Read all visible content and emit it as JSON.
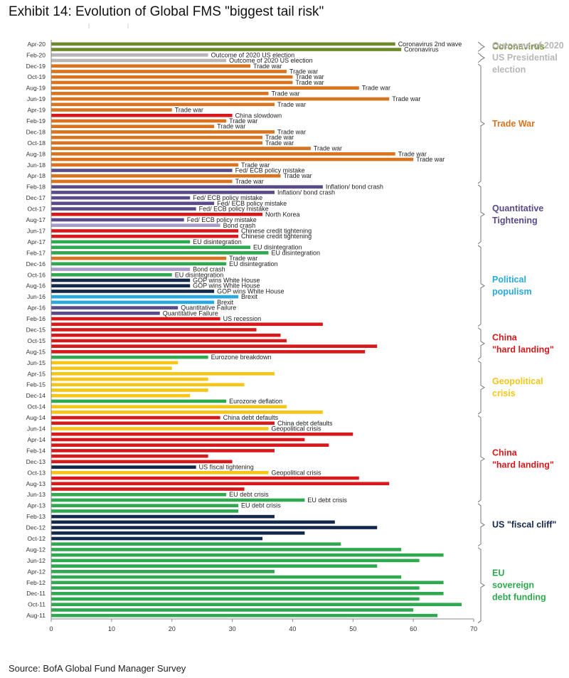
{
  "title": "Exhibit 14: Evolution of Global FMS \"biggest tail risk\"",
  "source": "Source: BofA Global Fund Manager Survey",
  "colors": {
    "green_olive": "#6e8b2c",
    "grey": "#b7b7b7",
    "orange": "#d9731d",
    "purple": "#5a4a8a",
    "lilac": "#a89cc8",
    "green": "#2fa84f",
    "red": "#d7191c",
    "navy": "#14284b",
    "blue": "#27a9e1",
    "yellow": "#f5c518"
  },
  "chart_data": {
    "type": "bar",
    "orientation": "horizontal",
    "xlim": [
      0,
      70
    ],
    "xticks": [
      "0",
      "10",
      "20",
      "30",
      "40",
      "50",
      "60",
      "70"
    ],
    "ytick_labels": [
      "Apr-20",
      "Feb-20",
      "Dec-19",
      "Oct-19",
      "Aug-19",
      "Jun-19",
      "Apr-19",
      "Feb-19",
      "Dec-18",
      "Oct-18",
      "Aug-18",
      "Jun-18",
      "Apr-18",
      "Feb-18",
      "Dec-17",
      "Oct-17",
      "Aug-17",
      "Jun-17",
      "Apr-17",
      "Feb-17",
      "Dec-16",
      "Oct-16",
      "Aug-16",
      "Jun-16",
      "Apr-16",
      "Feb-16",
      "Dec-15",
      "Oct-15",
      "Aug-15",
      "Jun-15",
      "Apr-15",
      "Feb-15",
      "Dec-14",
      "Oct-14",
      "Aug-14",
      "Jun-14",
      "Apr-14",
      "Feb-14",
      "Dec-13",
      "Oct-13",
      "Aug-13",
      "Jun-13",
      "Apr-13",
      "Feb-13",
      "Dec-12",
      "Oct-12",
      "Aug-12",
      "Jun-12",
      "Apr-12",
      "Feb-12",
      "Dec-11",
      "Oct-11",
      "Aug-11"
    ],
    "bars": [
      {
        "value": 57,
        "color": "green_olive",
        "label": "Coronavirus 2nd wave"
      },
      {
        "value": 58,
        "color": "green_olive",
        "label": "Coronavirus"
      },
      {
        "value": 26,
        "color": "grey",
        "label": "Outcome of 2020 US election"
      },
      {
        "value": 29,
        "color": "grey",
        "label": "Outcome of 2020 US election"
      },
      {
        "value": 33,
        "color": "orange",
        "label": "Trade war"
      },
      {
        "value": 39,
        "color": "orange",
        "label": "Trade war"
      },
      {
        "value": 40,
        "color": "orange",
        "label": "Trade war"
      },
      {
        "value": 40,
        "color": "orange",
        "label": "Trade war"
      },
      {
        "value": 51,
        "color": "orange",
        "label": "Trade war"
      },
      {
        "value": 36,
        "color": "orange",
        "label": "Trade war"
      },
      {
        "value": 56,
        "color": "orange",
        "label": "Trade war"
      },
      {
        "value": 37,
        "color": "orange",
        "label": "Trade war"
      },
      {
        "value": 20,
        "color": "orange",
        "label": "Trade war"
      },
      {
        "value": 30,
        "color": "red",
        "label": "China slowdown"
      },
      {
        "value": 29,
        "color": "orange",
        "label": "Trade war"
      },
      {
        "value": 27,
        "color": "orange",
        "label": "Trade war"
      },
      {
        "value": 37,
        "color": "orange",
        "label": "Trade war"
      },
      {
        "value": 35,
        "color": "orange",
        "label": "Trade war"
      },
      {
        "value": 35,
        "color": "orange",
        "label": "Trade war"
      },
      {
        "value": 43,
        "color": "orange",
        "label": "Trade war"
      },
      {
        "value": 57,
        "color": "orange",
        "label": "Trade war"
      },
      {
        "value": 60,
        "color": "orange",
        "label": "Trade war"
      },
      {
        "value": 31,
        "color": "orange",
        "label": "Trade war"
      },
      {
        "value": 30,
        "color": "purple",
        "label": "Fed/ ECB policy mistake"
      },
      {
        "value": 38,
        "color": "orange",
        "label": "Trade war"
      },
      {
        "value": 30,
        "color": "orange",
        "label": "Trade war"
      },
      {
        "value": 45,
        "color": "purple",
        "label": "Inflation/ bond crash"
      },
      {
        "value": 37,
        "color": "purple",
        "label": "Inflation/ bond crash"
      },
      {
        "value": 23,
        "color": "purple",
        "label": "Fed/ ECB policy mistake"
      },
      {
        "value": 27,
        "color": "purple",
        "label": "Fed/ ECB policy mistake"
      },
      {
        "value": 24,
        "color": "purple",
        "label": "Fed/ ECB policy mistake"
      },
      {
        "value": 35,
        "color": "red",
        "label": "North Korea"
      },
      {
        "value": 22,
        "color": "purple",
        "label": "Fed/ ECB policy mistake"
      },
      {
        "value": 28,
        "color": "lilac",
        "label": "Bond crash"
      },
      {
        "value": 31,
        "color": "red",
        "label": "Chinese credit tightening"
      },
      {
        "value": 31,
        "color": "red",
        "label": "Chinese credit tightening"
      },
      {
        "value": 23,
        "color": "green",
        "label": "EU disintegration"
      },
      {
        "value": 33,
        "color": "green",
        "label": "EU disintegration"
      },
      {
        "value": 36,
        "color": "green",
        "label": "EU disintegration"
      },
      {
        "value": 29,
        "color": "orange",
        "label": "Trade war"
      },
      {
        "value": 29,
        "color": "green",
        "label": "EU disintegration"
      },
      {
        "value": 23,
        "color": "lilac",
        "label": "Bond crash"
      },
      {
        "value": 20,
        "color": "green",
        "label": "EU disintegration"
      },
      {
        "value": 23,
        "color": "navy",
        "label": "GOP wins White House"
      },
      {
        "value": 23,
        "color": "navy",
        "label": "GOP wins White House"
      },
      {
        "value": 27,
        "color": "navy",
        "label": "GOP wins White House"
      },
      {
        "value": 31,
        "color": "blue",
        "label": "Brexit"
      },
      {
        "value": 27,
        "color": "blue",
        "label": "Brexit"
      },
      {
        "value": 21,
        "color": "purple",
        "label": "Quantitative Failure"
      },
      {
        "value": 18,
        "color": "purple",
        "label": "Quantitative Failure"
      },
      {
        "value": 28,
        "color": "red",
        "label": "US recession"
      },
      {
        "value": 45,
        "color": "red",
        "label": ""
      },
      {
        "value": 34,
        "color": "red",
        "label": ""
      },
      {
        "value": 38,
        "color": "red",
        "label": ""
      },
      {
        "value": 39,
        "color": "red",
        "label": ""
      },
      {
        "value": 54,
        "color": "red",
        "label": ""
      },
      {
        "value": 52,
        "color": "red",
        "label": ""
      },
      {
        "value": 26,
        "color": "green",
        "label": "Eurozone breakdown"
      },
      {
        "value": 21,
        "color": "yellow",
        "label": ""
      },
      {
        "value": 20,
        "color": "yellow",
        "label": ""
      },
      {
        "value": 37,
        "color": "yellow",
        "label": ""
      },
      {
        "value": 26,
        "color": "yellow",
        "label": ""
      },
      {
        "value": 32,
        "color": "yellow",
        "label": ""
      },
      {
        "value": 26,
        "color": "yellow",
        "label": ""
      },
      {
        "value": 23,
        "color": "yellow",
        "label": ""
      },
      {
        "value": 29,
        "color": "green",
        "label": "Eurozone deflation"
      },
      {
        "value": 39,
        "color": "yellow",
        "label": ""
      },
      {
        "value": 45,
        "color": "yellow",
        "label": ""
      },
      {
        "value": 28,
        "color": "red",
        "label": "China debt defaults"
      },
      {
        "value": 37,
        "color": "red",
        "label": "China debt defaults"
      },
      {
        "value": 36,
        "color": "yellow",
        "label": "Geopolitical crisis"
      },
      {
        "value": 50,
        "color": "red",
        "label": ""
      },
      {
        "value": 42,
        "color": "red",
        "label": ""
      },
      {
        "value": 46,
        "color": "red",
        "label": ""
      },
      {
        "value": 37,
        "color": "red",
        "label": ""
      },
      {
        "value": 26,
        "color": "red",
        "label": ""
      },
      {
        "value": 30,
        "color": "red",
        "label": ""
      },
      {
        "value": 24,
        "color": "navy",
        "label": "US fiscal tightening"
      },
      {
        "value": 36,
        "color": "yellow",
        "label": "Geopolitical crisis"
      },
      {
        "value": 51,
        "color": "red",
        "label": ""
      },
      {
        "value": 56,
        "color": "red",
        "label": ""
      },
      {
        "value": 32,
        "color": "red",
        "label": ""
      },
      {
        "value": 29,
        "color": "green",
        "label": "EU debt crisis"
      },
      {
        "value": 42,
        "color": "green",
        "label": "EU debt crisis"
      },
      {
        "value": 31,
        "color": "green",
        "label": "EU debt crisis"
      },
      {
        "value": 31,
        "color": "green",
        "label": ""
      },
      {
        "value": 37,
        "color": "navy",
        "label": ""
      },
      {
        "value": 47,
        "color": "navy",
        "label": ""
      },
      {
        "value": 54,
        "color": "navy",
        "label": ""
      },
      {
        "value": 42,
        "color": "navy",
        "label": ""
      },
      {
        "value": 35,
        "color": "navy",
        "label": ""
      },
      {
        "value": 48,
        "color": "green",
        "label": ""
      },
      {
        "value": 58,
        "color": "green",
        "label": ""
      },
      {
        "value": 65,
        "color": "green",
        "label": ""
      },
      {
        "value": 61,
        "color": "green",
        "label": ""
      },
      {
        "value": 54,
        "color": "green",
        "label": ""
      },
      {
        "value": 37,
        "color": "green",
        "label": ""
      },
      {
        "value": 58,
        "color": "green",
        "label": ""
      },
      {
        "value": 65,
        "color": "green",
        "label": ""
      },
      {
        "value": 61,
        "color": "green",
        "label": ""
      },
      {
        "value": 65,
        "color": "green",
        "label": ""
      },
      {
        "value": 61,
        "color": "green",
        "label": ""
      },
      {
        "value": 68,
        "color": "green",
        "label": ""
      },
      {
        "value": 60,
        "color": "green",
        "label": ""
      },
      {
        "value": 64,
        "color": "green",
        "label": ""
      }
    ],
    "annotations": [
      {
        "lines": [
          "Coronavirus"
        ],
        "color": "green_olive",
        "from": 0,
        "to": 2
      },
      {
        "lines": [
          "Outcome of 2020",
          "US Presidential",
          "election"
        ],
        "color": "grey",
        "from": 2,
        "to": 4
      },
      {
        "lines": [
          "Trade War"
        ],
        "color": "orange",
        "from": 4,
        "to": 26
      },
      {
        "lines": [
          "Quantitative",
          "Tightening"
        ],
        "color": "purple",
        "from": 26,
        "to": 37
      },
      {
        "lines": [
          "Political",
          "populism"
        ],
        "color": "blue",
        "from": 37,
        "to": 52
      },
      {
        "lines": [
          "China",
          "\"hard landing\""
        ],
        "color": "red",
        "from": 52,
        "to": 58
      },
      {
        "lines": [
          "Geopolitical",
          "crisis"
        ],
        "color": "yellow",
        "from": 58,
        "to": 68
      },
      {
        "lines": [
          "China",
          "\"hard landing\""
        ],
        "color": "red",
        "from": 68,
        "to": 84
      },
      {
        "lines": [
          "US \"fiscal cliff\""
        ],
        "color": "navy",
        "from": 84,
        "to": 92
      },
      {
        "lines": [
          "EU",
          "sovereign",
          "debt funding"
        ],
        "color": "green",
        "from": 92,
        "to": 106
      }
    ]
  }
}
